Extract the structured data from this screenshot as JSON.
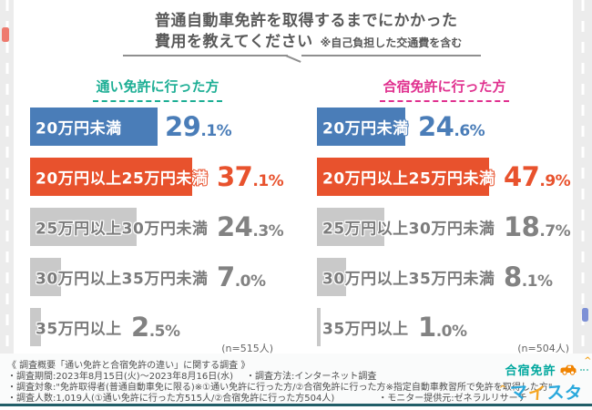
{
  "title": {
    "line1": "普通自動車免許を取得するまでにかかった",
    "line2": "費用を教えてください",
    "note": "※自己負担した交通費を含む"
  },
  "chart_data": {
    "type": "bar",
    "orientation": "horizontal",
    "unit": "%",
    "title": "普通自動車免許を取得するまでにかかった費用を教えてください ※自己負担した交通費を含む",
    "categories": [
      "20万円未満",
      "20万円以上25万円未満",
      "25万円以上30万円未満",
      "30万円以上35万円未満",
      "35万円以上"
    ],
    "series": [
      {
        "name": "通い免許に行った方",
        "n_label": "(n=515人)",
        "values": [
          29.1,
          37.1,
          24.3,
          7.0,
          2.5
        ]
      },
      {
        "name": "合宿免許に行った方",
        "n_label": "(n=504人)",
        "values": [
          24.6,
          47.9,
          18.7,
          8.1,
          1.0
        ]
      }
    ],
    "bar_colors": {
      "row1": "#4a7db8",
      "row2": "#e8522d",
      "default": "#c9c9c9"
    },
    "header_colors": [
      "#1cae94",
      "#e0318f"
    ],
    "legend_position": "column-headers",
    "grid": false
  },
  "footer": {
    "line1": "《 調査概要「通い免許と合宿免許の違い」に関する調査 》",
    "line2a": "・調査期間:2023年8月15日(火)〜2023年8月16日(水)",
    "line2b": "・調査方法:インターネット調査",
    "line3": "・調査対象:\"免許取得者(普通自動車免に限る)※①通い免許に行った方/②合宿免許に行った方※指定自動車教習所で免許を取得した方\"",
    "line4a": "・調査人数:1,019人(①通い免許に行った方515人/②合宿免許に行った方504人)",
    "line4b": "・モニター提供元:ゼネラルリサーチ"
  },
  "logo": {
    "line1": "合宿免許",
    "line2": [
      {
        "ch": "マ",
        "color": "#29a8dc"
      },
      {
        "ch": "イ",
        "color": "#f5a623"
      },
      {
        "ch": "ス",
        "color": "#29a8dc"
      },
      {
        "ch": "タ",
        "color": "#29a8dc"
      },
      {
        "ch": "ー",
        "color": "#f5a623"
      }
    ]
  }
}
